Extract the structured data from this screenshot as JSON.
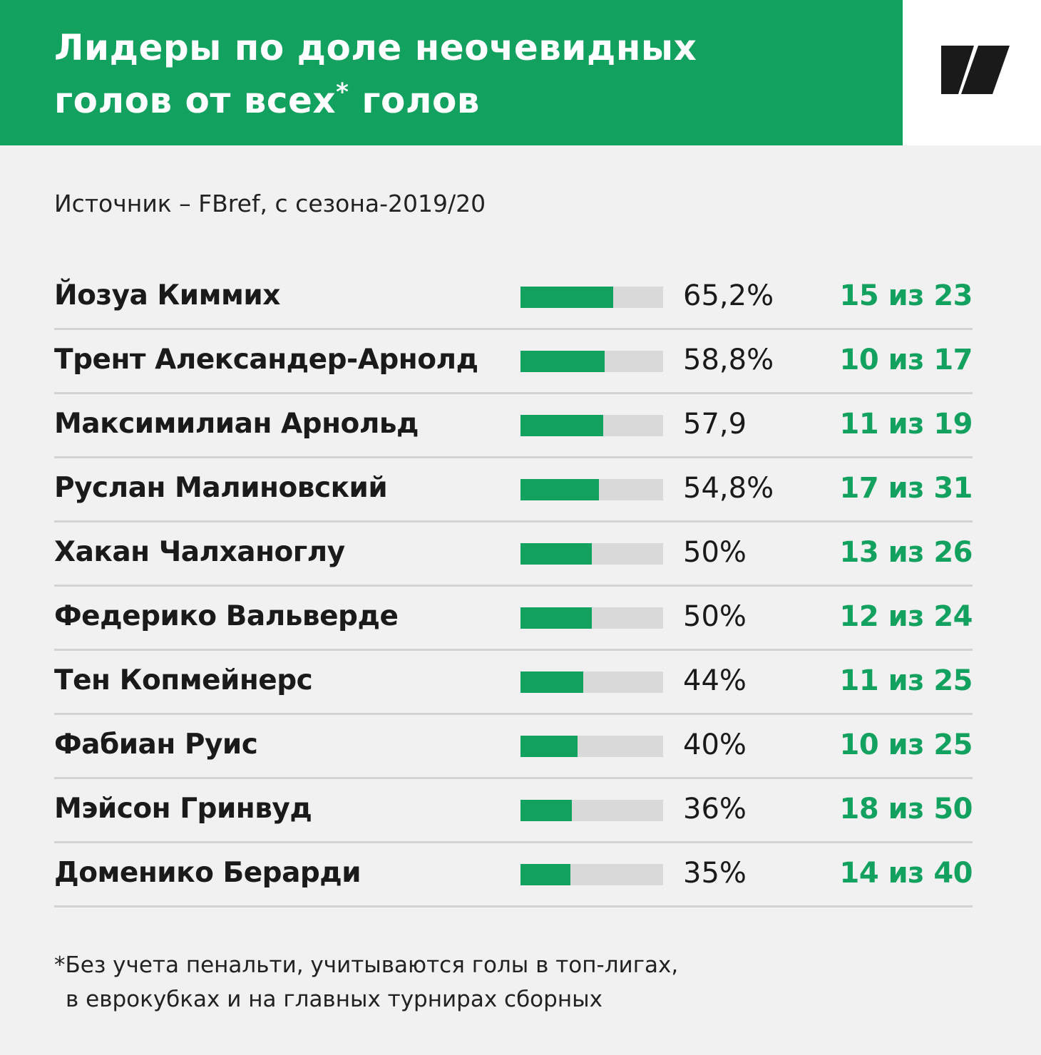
{
  "header": {
    "title_line1": "Лидеры по доле неочевидных",
    "title_line2": "голов от всех",
    "title_star": "*",
    "title_line2_end": " голов"
  },
  "source": "Источник – FBref, с сезона-2019/20",
  "chart_data": {
    "type": "bar",
    "categories": [
      "Йозуа Киммих",
      "Трент Александер-Арнолд",
      "Максимилиан Арнольд",
      "Руслан Малиновский",
      "Хакан Чалханоглу",
      "Федерико Вальверде",
      "Тен Копмейнерс",
      "Фабиан Руис",
      "Мэйсон Гринвуд",
      "Доменико Берарди"
    ],
    "values": [
      65.2,
      58.8,
      57.9,
      54.8,
      50,
      50,
      44,
      40,
      36,
      35
    ],
    "value_labels": [
      "65,2%",
      "58,8%",
      "57,9",
      "54,8%",
      "50%",
      "50%",
      "44%",
      "40%",
      "36%",
      "35%"
    ],
    "goals_labels": [
      "15 из 23",
      "10 из 17",
      "11 из 19",
      "17 из 31",
      "13 из 26",
      "12 из 24",
      "11 из 25",
      "10 из 25",
      "18 из 50",
      "14 из 40"
    ],
    "xlim": [
      0,
      100
    ],
    "colors": {
      "bar": "#13a15f",
      "track": "#d9d9d9"
    }
  },
  "footnote": {
    "line1": "*Без учета пенальти, учитываются голы в топ-лигах,",
    "line2": "в еврокубках и на главных турнирах сборных"
  },
  "logo": {
    "icon": "publisher-logo-icon"
  }
}
